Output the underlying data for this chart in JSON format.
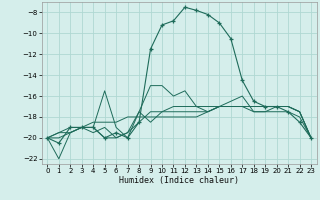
{
  "title": "",
  "xlabel": "Humidex (Indice chaleur)",
  "bg_color": "#d5eeeb",
  "grid_color": "#afd8d3",
  "line_color": "#1e6b5a",
  "xlim": [
    -0.5,
    23.5
  ],
  "ylim": [
    -22.5,
    -7.0
  ],
  "xticks": [
    0,
    1,
    2,
    3,
    4,
    5,
    6,
    7,
    8,
    9,
    10,
    11,
    12,
    13,
    14,
    15,
    16,
    17,
    18,
    19,
    20,
    21,
    22,
    23
  ],
  "yticks": [
    -8,
    -10,
    -12,
    -14,
    -16,
    -18,
    -20,
    -22
  ],
  "series": [
    {
      "x": [
        0,
        1,
        2,
        3,
        4,
        5,
        6,
        7,
        8,
        9,
        10,
        11,
        12,
        13,
        14,
        15,
        16,
        17,
        18,
        19,
        20,
        21,
        22,
        23
      ],
      "y": [
        -20,
        -20.5,
        -19,
        -19,
        -19,
        -20,
        -19.5,
        -20,
        -18.5,
        -11.5,
        -9.2,
        -8.8,
        -7.5,
        -7.8,
        -8.2,
        -9.0,
        -10.5,
        -14.5,
        -16.5,
        -17,
        -17,
        -17.5,
        -18.5,
        -20
      ],
      "marker": true
    },
    {
      "x": [
        0,
        1,
        2,
        3,
        4,
        5,
        6,
        7,
        8,
        9,
        10,
        11,
        12,
        13,
        14,
        15,
        16,
        17,
        18,
        19,
        20,
        21,
        22,
        23
      ],
      "y": [
        -20,
        -22,
        -19.5,
        -19,
        -19,
        -15.5,
        -19,
        -20,
        -17.5,
        -15,
        -15,
        -16,
        -15.5,
        -17,
        -17.5,
        -17,
        -16.5,
        -16,
        -17.5,
        -17.5,
        -17,
        -17,
        -17.5,
        -20
      ],
      "marker": false
    },
    {
      "x": [
        0,
        1,
        2,
        3,
        4,
        5,
        6,
        7,
        8,
        9,
        10,
        11,
        12,
        13,
        14,
        15,
        16,
        17,
        18,
        19,
        20,
        21,
        22,
        23
      ],
      "y": [
        -20,
        -19.5,
        -19,
        -19,
        -19,
        -20,
        -20,
        -19.5,
        -17.5,
        -18.5,
        -17.5,
        -17.5,
        -17.5,
        -17.5,
        -17.5,
        -17,
        -17,
        -17,
        -17,
        -17,
        -17,
        -17,
        -17.5,
        -20
      ],
      "marker": false
    },
    {
      "x": [
        0,
        1,
        2,
        3,
        4,
        5,
        6,
        7,
        8,
        9,
        10,
        11,
        12,
        13,
        14,
        15,
        16,
        17,
        18,
        19,
        20,
        21,
        22,
        23
      ],
      "y": [
        -20,
        -19.5,
        -19.5,
        -19,
        -18.5,
        -18.5,
        -18.5,
        -18,
        -18,
        -18,
        -18,
        -18,
        -18,
        -18,
        -17.5,
        -17,
        -17,
        -17,
        -17,
        -17,
        -17,
        -17,
        -17.5,
        -20
      ],
      "marker": false
    },
    {
      "x": [
        0,
        1,
        2,
        3,
        4,
        5,
        6,
        7,
        8,
        9,
        10,
        11,
        12,
        13,
        14,
        15,
        16,
        17,
        18,
        19,
        20,
        21,
        22,
        23
      ],
      "y": [
        -20,
        -20,
        -19.5,
        -19,
        -19.5,
        -19,
        -20,
        -19.5,
        -18.5,
        -17.5,
        -17.5,
        -17,
        -17,
        -17,
        -17,
        -17,
        -17,
        -17,
        -17.5,
        -17.5,
        -17.5,
        -17.5,
        -18,
        -20
      ],
      "marker": false
    }
  ]
}
